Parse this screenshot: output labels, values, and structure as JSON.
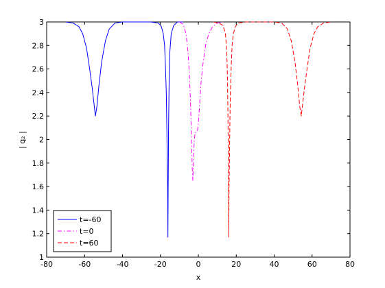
{
  "chart_data": {
    "type": "line",
    "title": "",
    "xlabel": "x",
    "ylabel": "| q₂ |",
    "xlim": [
      -80,
      80
    ],
    "ylim": [
      1,
      3
    ],
    "xticks": [
      -80,
      -60,
      -40,
      -20,
      0,
      20,
      40,
      60,
      80
    ],
    "yticks": [
      1,
      1.2,
      1.4,
      1.6,
      1.8,
      2,
      2.2,
      2.4,
      2.6,
      2.8,
      3
    ],
    "xtick_labels": [
      "-80",
      "-60",
      "-40",
      "-20",
      "0",
      "20",
      "40",
      "60",
      "80"
    ],
    "ytick_labels": [
      "1",
      "1.2",
      "1.4",
      "1.6",
      "1.8",
      "2",
      "2.2",
      "2.4",
      "2.6",
      "2.8",
      "3"
    ],
    "grid": false,
    "legend_position": "bottom-left",
    "series": [
      {
        "name": "t=-60",
        "color": "#0000ff",
        "style": "solid",
        "points": [
          [
            -70,
            3.0
          ],
          [
            -66,
            2.99
          ],
          [
            -63,
            2.96
          ],
          [
            -61,
            2.9
          ],
          [
            -59,
            2.78
          ],
          [
            -57.5,
            2.62
          ],
          [
            -56,
            2.44
          ],
          [
            -55,
            2.3
          ],
          [
            -54.3,
            2.2
          ],
          [
            -53.5,
            2.28
          ],
          [
            -52.5,
            2.45
          ],
          [
            -51,
            2.66
          ],
          [
            -49,
            2.84
          ],
          [
            -47,
            2.94
          ],
          [
            -44,
            2.99
          ],
          [
            -40,
            3.0
          ],
          [
            -25,
            3.0
          ],
          [
            -21,
            2.99
          ],
          [
            -19.5,
            2.96
          ],
          [
            -18.5,
            2.9
          ],
          [
            -17.8,
            2.8
          ],
          [
            -17.3,
            2.6
          ],
          [
            -16.9,
            2.4
          ],
          [
            -16.6,
            2.1
          ],
          [
            -16.4,
            1.8
          ],
          [
            -16.2,
            1.6
          ],
          [
            -16.05,
            1.17
          ],
          [
            -15.9,
            1.6
          ],
          [
            -15.7,
            2.1
          ],
          [
            -15.4,
            2.5
          ],
          [
            -15.0,
            2.75
          ],
          [
            -14.3,
            2.9
          ],
          [
            -13,
            2.97
          ],
          [
            -11,
            3.0
          ],
          [
            -8,
            3.0
          ]
        ]
      },
      {
        "name": "t=0",
        "color": "#ff00ff",
        "style": "dashdot",
        "points": [
          [
            -10,
            3.0
          ],
          [
            -8,
            2.98
          ],
          [
            -6.5,
            2.9
          ],
          [
            -5.5,
            2.75
          ],
          [
            -4.7,
            2.55
          ],
          [
            -4.1,
            2.3
          ],
          [
            -3.6,
            2.0
          ],
          [
            -3.2,
            1.75
          ],
          [
            -2.9,
            1.65
          ],
          [
            -2.6,
            1.78
          ],
          [
            -2.2,
            1.98
          ],
          [
            -1.7,
            2.06
          ],
          [
            -1.0,
            2.06
          ],
          [
            -0.4,
            2.08
          ],
          [
            0.2,
            2.18
          ],
          [
            0.8,
            2.33
          ],
          [
            1.5,
            2.5
          ],
          [
            2.5,
            2.65
          ],
          [
            3.8,
            2.8
          ],
          [
            5.5,
            2.9
          ],
          [
            7.5,
            2.96
          ],
          [
            10,
            2.99
          ],
          [
            13,
            3.0
          ]
        ]
      },
      {
        "name": "t=60",
        "color": "#ff0000",
        "style": "dashed",
        "points": [
          [
            8,
            3.0
          ],
          [
            11,
            2.99
          ],
          [
            13,
            2.97
          ],
          [
            14.3,
            2.9
          ],
          [
            15.0,
            2.75
          ],
          [
            15.4,
            2.5
          ],
          [
            15.7,
            2.1
          ],
          [
            15.9,
            1.6
          ],
          [
            16.05,
            1.17
          ],
          [
            16.2,
            1.6
          ],
          [
            16.4,
            1.8
          ],
          [
            16.6,
            2.1
          ],
          [
            16.9,
            2.4
          ],
          [
            17.3,
            2.6
          ],
          [
            17.8,
            2.8
          ],
          [
            18.5,
            2.9
          ],
          [
            19.5,
            2.96
          ],
          [
            21,
            2.99
          ],
          [
            25,
            3.0
          ],
          [
            40,
            3.0
          ],
          [
            44,
            2.99
          ],
          [
            47,
            2.94
          ],
          [
            49,
            2.84
          ],
          [
            51,
            2.66
          ],
          [
            52.5,
            2.45
          ],
          [
            53.5,
            2.28
          ],
          [
            54.3,
            2.2
          ],
          [
            55,
            2.3
          ],
          [
            56,
            2.44
          ],
          [
            57.5,
            2.62
          ],
          [
            59,
            2.78
          ],
          [
            61,
            2.9
          ],
          [
            63,
            2.96
          ],
          [
            66,
            2.99
          ],
          [
            70,
            3.0
          ]
        ]
      }
    ]
  }
}
